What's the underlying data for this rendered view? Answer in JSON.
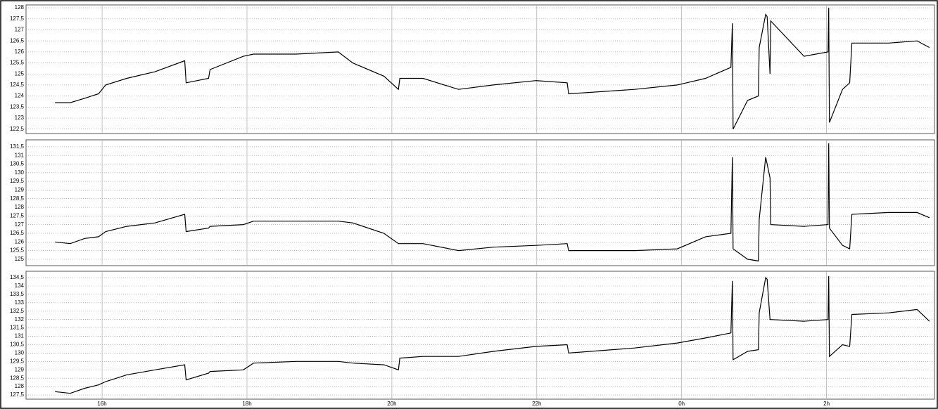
{
  "chart_data": [
    {
      "type": "line",
      "grid": true,
      "x": [
        15.35,
        15.56,
        15.76,
        15.95,
        16.05,
        16.34,
        16.73,
        17.14,
        17.16,
        17.47,
        17.49,
        17.95,
        18.09,
        18.68,
        19.26,
        19.46,
        19.89,
        20.09,
        20.11,
        20.43,
        20.92,
        21.4,
        21.99,
        22.42,
        22.44,
        23.35,
        23.94,
        24.33,
        24.68,
        24.7,
        24.71,
        24.91,
        25.06,
        25.07,
        25.16,
        25.18,
        25.22,
        25.23,
        25.69,
        26.02,
        26.03,
        26.04,
        26.22,
        26.32,
        26.35,
        26.86,
        27.25,
        27.42
      ],
      "series": [
        {
          "color": "#000000",
          "values": [
            123.7,
            123.7,
            123.9,
            124.1,
            124.5,
            124.8,
            125.1,
            125.6,
            124.6,
            124.8,
            125.2,
            125.8,
            125.9,
            125.9,
            126.0,
            125.5,
            124.9,
            124.3,
            124.8,
            124.8,
            124.3,
            124.5,
            124.7,
            124.6,
            124.1,
            124.3,
            124.5,
            124.8,
            125.3,
            127.3,
            122.5,
            123.8,
            124.0,
            126.2,
            127.7,
            127.6,
            125.0,
            127.4,
            125.8,
            126.0,
            128.0,
            122.8,
            124.3,
            124.6,
            126.4,
            126.4,
            126.5,
            126.2
          ]
        }
      ],
      "xlim": [
        14.95,
        27.49
      ],
      "xticks": [
        16,
        18,
        20,
        22,
        24,
        26
      ],
      "ylim": [
        122.3,
        128.13
      ],
      "yticks": [
        {
          "value": 122.5,
          "label": "122,5"
        },
        123,
        {
          "value": 123.5,
          "label": "123,5"
        },
        124,
        {
          "value": 124.5,
          "label": "124,5"
        },
        125,
        {
          "value": 125.5,
          "label": "125,5"
        },
        126,
        {
          "value": 126.5,
          "label": "126,5"
        },
        127,
        {
          "value": 127.5,
          "label": "127,5"
        },
        128
      ]
    },
    {
      "type": "line",
      "grid": true,
      "x": [
        15.35,
        15.56,
        15.76,
        15.95,
        16.05,
        16.34,
        16.73,
        17.14,
        17.16,
        17.47,
        17.49,
        17.95,
        18.09,
        18.68,
        19.26,
        19.46,
        19.89,
        20.09,
        20.11,
        20.43,
        20.92,
        21.4,
        21.99,
        22.42,
        22.44,
        23.35,
        23.94,
        24.33,
        24.68,
        24.7,
        24.71,
        24.91,
        25.06,
        25.07,
        25.16,
        25.18,
        25.22,
        25.23,
        25.69,
        26.02,
        26.03,
        26.04,
        26.22,
        26.32,
        26.35,
        26.86,
        27.25,
        27.42
      ],
      "series": [
        {
          "color": "#000000",
          "values": [
            126.0,
            125.9,
            126.2,
            126.3,
            126.6,
            126.9,
            127.1,
            127.6,
            126.6,
            126.8,
            126.9,
            127.0,
            127.2,
            127.2,
            127.2,
            127.1,
            126.5,
            125.9,
            125.9,
            125.9,
            125.5,
            125.7,
            125.8,
            125.9,
            125.5,
            125.5,
            125.6,
            126.3,
            126.5,
            130.9,
            125.6,
            125.0,
            124.9,
            127.3,
            130.9,
            130.5,
            129.7,
            127.0,
            126.9,
            127.0,
            131.7,
            126.8,
            125.8,
            125.6,
            127.6,
            127.7,
            127.7,
            127.4
          ]
        }
      ],
      "xlim": [
        14.95,
        27.49
      ],
      "xticks": [
        16,
        18,
        20,
        22,
        24,
        26
      ],
      "ylim": [
        124.63,
        131.9
      ],
      "yticks": [
        125,
        {
          "value": 125.5,
          "label": "125,5"
        },
        126,
        {
          "value": 126.5,
          "label": "126,5"
        },
        127,
        {
          "value": 127.5,
          "label": "127,5"
        },
        128,
        {
          "value": 128.5,
          "label": "128,5"
        },
        129,
        {
          "value": 129.5,
          "label": "129,5"
        },
        130,
        {
          "value": 130.5,
          "label": "130,5"
        },
        131,
        {
          "value": 131.5,
          "label": "131,5"
        }
      ]
    },
    {
      "type": "line",
      "grid": true,
      "x": [
        15.35,
        15.56,
        15.76,
        15.95,
        16.05,
        16.34,
        16.73,
        17.14,
        17.16,
        17.47,
        17.49,
        17.95,
        18.09,
        18.68,
        19.26,
        19.46,
        19.89,
        20.09,
        20.11,
        20.43,
        20.92,
        21.4,
        21.99,
        22.42,
        22.44,
        23.35,
        23.94,
        24.33,
        24.68,
        24.7,
        24.71,
        24.91,
        25.06,
        25.07,
        25.16,
        25.18,
        25.22,
        25.23,
        25.69,
        26.02,
        26.03,
        26.04,
        26.22,
        26.32,
        26.35,
        26.86,
        27.25,
        27.42
      ],
      "series": [
        {
          "color": "#000000",
          "values": [
            127.7,
            127.6,
            127.9,
            128.1,
            128.3,
            128.7,
            129.0,
            129.3,
            128.4,
            128.8,
            128.9,
            129.0,
            129.4,
            129.5,
            129.5,
            129.4,
            129.3,
            129.0,
            129.7,
            129.8,
            129.8,
            130.1,
            130.4,
            130.5,
            130.0,
            130.3,
            130.6,
            130.9,
            131.2,
            134.3,
            129.6,
            130.1,
            130.2,
            132.4,
            134.5,
            134.4,
            132.0,
            132.0,
            131.9,
            132.0,
            134.6,
            129.8,
            130.5,
            130.4,
            132.3,
            132.4,
            132.6,
            131.9
          ]
        }
      ],
      "xlim": [
        14.95,
        27.49
      ],
      "xticks": [
        {
          "value": 16,
          "label": "16h"
        },
        {
          "value": 18,
          "label": "18h"
        },
        {
          "value": 20,
          "label": "20h"
        },
        {
          "value": 22,
          "label": "22h"
        },
        {
          "value": 24,
          "label": "0h"
        },
        {
          "value": 26,
          "label": "2h"
        }
      ],
      "ylim": [
        127.25,
        134.88
      ],
      "yticks": [
        {
          "value": 127.5,
          "label": "127,5"
        },
        128,
        {
          "value": 128.5,
          "label": "128,5"
        },
        129,
        {
          "value": 129.5,
          "label": "129,5"
        },
        130,
        {
          "value": 130.5,
          "label": "130,5"
        },
        131,
        {
          "value": 131.5,
          "label": "131,5"
        },
        132,
        {
          "value": 132.5,
          "label": "132,5"
        },
        133,
        {
          "value": 133.5,
          "label": "133,5"
        },
        134,
        {
          "value": 134.5,
          "label": "134,5"
        }
      ]
    }
  ]
}
